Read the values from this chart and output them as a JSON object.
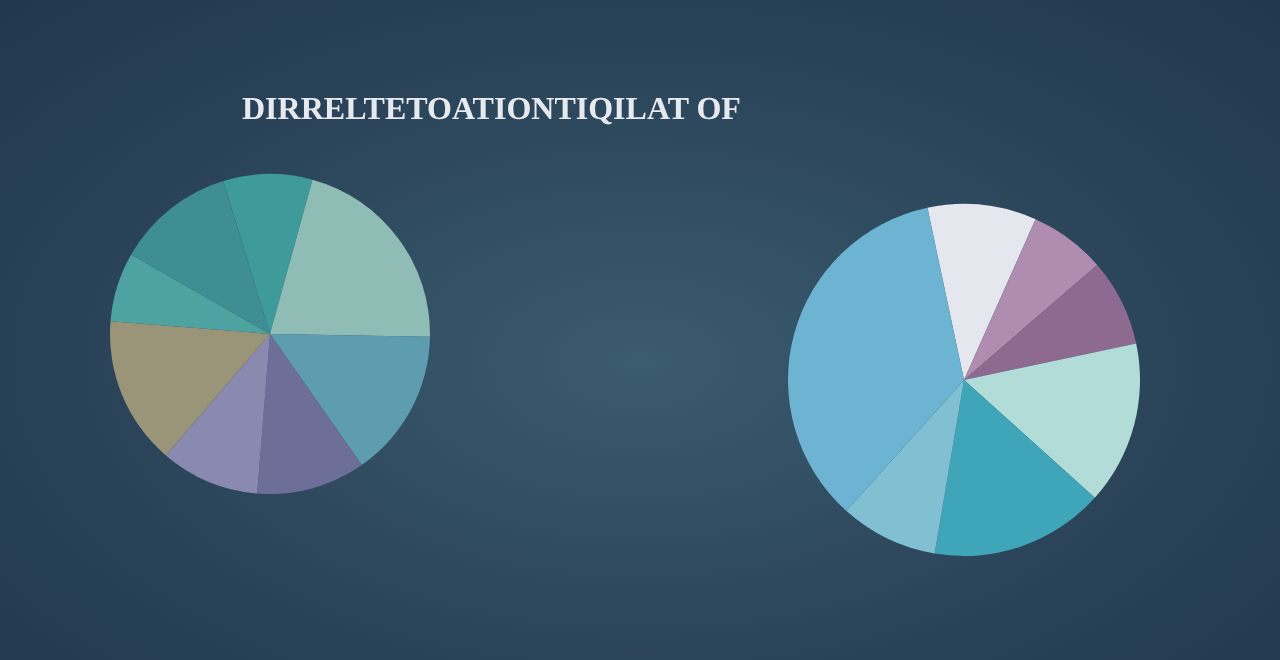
{
  "chart_data": [
    {
      "type": "pie",
      "title": "DIRRELTETOATIONTIQILAT OF",
      "categories": [
        null,
        null,
        null,
        null,
        null,
        null,
        null,
        null
      ],
      "values": [
        9,
        21,
        15,
        11,
        10,
        15,
        7,
        12
      ],
      "colors": [
        "#3f9a9a",
        "#8fbcb4",
        "#5e9db0",
        "#6e6f98",
        "#8a89b0",
        "#9a9478",
        "#4ea3a0",
        "#3f8e93"
      ]
    },
    {
      "type": "pie",
      "categories": [
        null,
        null,
        null,
        null,
        null,
        null,
        null
      ],
      "values": [
        10,
        7,
        8,
        15,
        16,
        9,
        35
      ],
      "colors": [
        "#e5e7ee",
        "#b08cb0",
        "#8e6a90",
        "#b2dcd8",
        "#3ea6b8",
        "#80c0d2",
        "#6db4d2"
      ]
    }
  ]
}
